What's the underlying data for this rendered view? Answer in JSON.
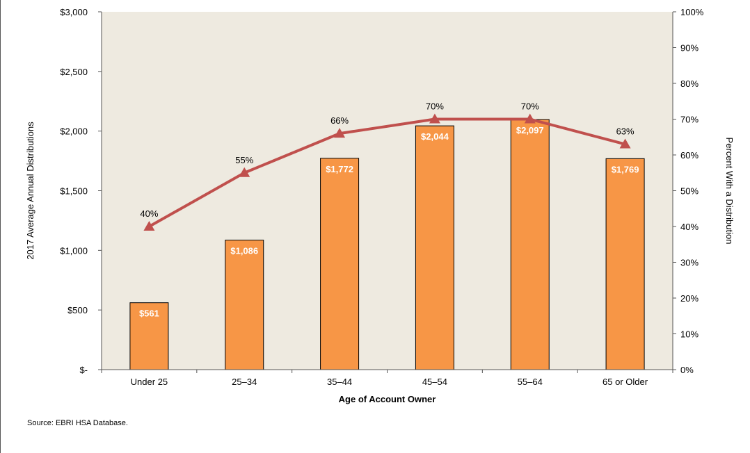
{
  "chart_data": {
    "type": "bar",
    "categories": [
      "Under 25",
      "25–34",
      "35–44",
      "45–54",
      "55–64",
      "65 or Older"
    ],
    "series": [
      {
        "name": "2017 Average Annual Distributions",
        "type": "bar",
        "axis": "left",
        "values": [
          561,
          1086,
          1772,
          2044,
          2097,
          1769
        ],
        "labels": [
          "$561",
          "$1,086",
          "$1,772",
          "$2,044",
          "$2,097",
          "$1,769"
        ],
        "color": "#F79646"
      },
      {
        "name": "Percent With a Distribution",
        "type": "line",
        "axis": "right",
        "values": [
          40,
          55,
          66,
          70,
          70,
          63
        ],
        "labels": [
          "40%",
          "55%",
          "66%",
          "70%",
          "70%",
          "63%"
        ],
        "color": "#C0504D",
        "marker": "triangle"
      }
    ],
    "xlabel": "Age of Account Owner",
    "ylabel": "2017 Average Annual Distributions",
    "y2label": "Percent With a Distribution",
    "ylim": [
      0,
      3000
    ],
    "y2lim": [
      0,
      100
    ],
    "yticks": [
      0,
      500,
      1000,
      1500,
      2000,
      2500,
      3000
    ],
    "ytick_labels": [
      "$-",
      "$500",
      "$1,000",
      "$1,500",
      "$2,000",
      "$2,500",
      "$3,000"
    ],
    "y2ticks": [
      0,
      10,
      20,
      30,
      40,
      50,
      60,
      70,
      80,
      90,
      100
    ],
    "y2tick_labels": [
      "0%",
      "10%",
      "20%",
      "30%",
      "40%",
      "50%",
      "60%",
      "70%",
      "80%",
      "90%",
      "100%"
    ],
    "plot_background": "#EEEAE0",
    "grid": false,
    "legend": "none"
  },
  "source_note": "Source: EBRI HSA Database."
}
